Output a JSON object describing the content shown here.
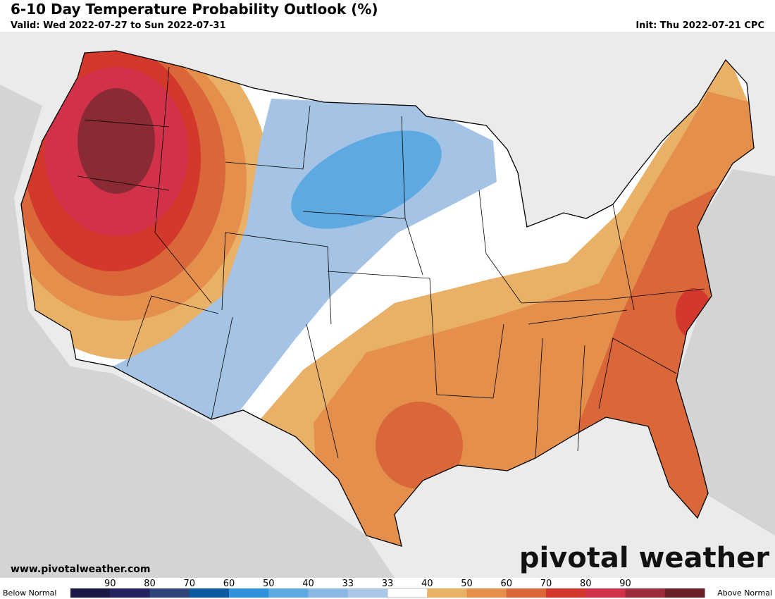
{
  "header": {
    "title": "6-10 Day Temperature Probability Outlook (%)",
    "valid": "Valid: Wed 2022-07-27 to Sun 2022-07-31",
    "init": "Init: Thu 2022-07-21 CPC"
  },
  "footer": {
    "website": "www.pivotalweather.com",
    "brand": "pivotal weather"
  },
  "legend": {
    "below_label": "Below Normal",
    "above_label": "Above Normal",
    "ticks": [
      "90",
      "80",
      "70",
      "60",
      "50",
      "40",
      "33",
      "33",
      "40",
      "50",
      "60",
      "70",
      "80",
      "90"
    ],
    "colors": [
      "#1b1848",
      "#252260",
      "#2f4478",
      "#0d5aa3",
      "#2e93db",
      "#5fa9e3",
      "#8bb8e2",
      "#aac7e7",
      "#ffffff",
      "#e9b167",
      "#e48f4c",
      "#d9673a",
      "#d2382b",
      "#d13249",
      "#9c2b3d",
      "#692026"
    ]
  }
}
